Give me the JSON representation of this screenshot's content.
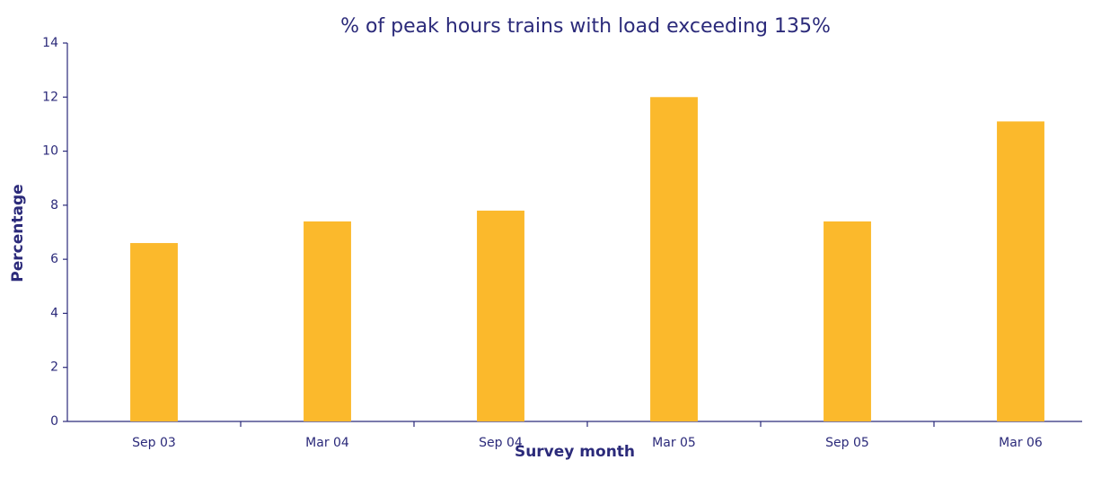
{
  "chart_data": {
    "type": "bar",
    "title": "% of peak hours trains with load exceeding 135%",
    "x_label": "Survey month",
    "y_label": "Percentage",
    "categories": [
      "Sep 03",
      "Mar 04",
      "Sep 04",
      "Mar 05",
      "Sep 05",
      "Mar 06"
    ],
    "values": [
      6.6,
      7.4,
      7.8,
      12.0,
      7.4,
      11.1
    ],
    "color": "#fbb92c",
    "ylim": [
      0,
      14
    ],
    "yticks": [
      0,
      2,
      4,
      6,
      8,
      10,
      12,
      14
    ],
    "grid": false
  }
}
